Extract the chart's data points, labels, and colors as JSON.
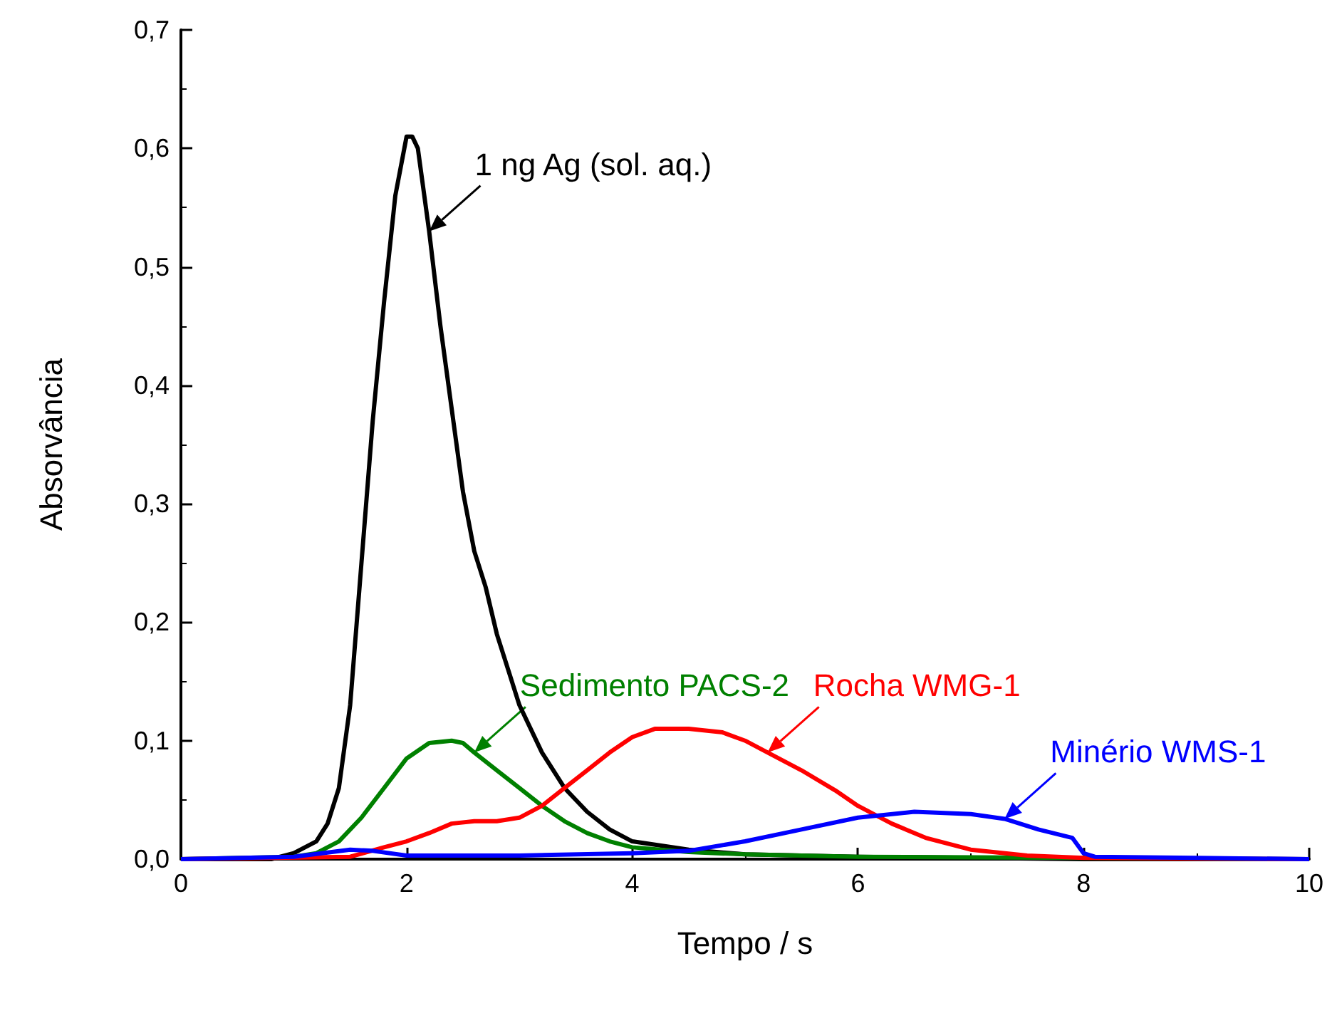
{
  "chart_data": {
    "type": "line",
    "xlabel": "Tempo / s",
    "ylabel": "Absorvância",
    "xlim": [
      0,
      10
    ],
    "xticks": [
      0,
      2,
      4,
      6,
      8,
      10
    ],
    "ylim": [
      0,
      0.7
    ],
    "yticks": [
      {
        "value": 0,
        "label": "0,0"
      },
      {
        "value": 0.1,
        "label": "0,1"
      },
      {
        "value": 0.2,
        "label": "0,2"
      },
      {
        "value": 0.3,
        "label": "0,3"
      },
      {
        "value": 0.4,
        "label": "0,4"
      },
      {
        "value": 0.5,
        "label": "0,5"
      },
      {
        "value": 0.6,
        "label": "0,6"
      },
      {
        "value": 0.7,
        "label": "0,7"
      }
    ],
    "grid": false,
    "marker": "none",
    "line_style": "solid",
    "series": [
      {
        "name": "1 ng Ag (sol. aq.)",
        "color": "#000000",
        "x": [
          0,
          0.8,
          1.0,
          1.2,
          1.3,
          1.4,
          1.5,
          1.6,
          1.7,
          1.8,
          1.9,
          2.0,
          2.05,
          2.1,
          2.2,
          2.3,
          2.4,
          2.5,
          2.6,
          2.7,
          2.8,
          2.9,
          3.0,
          3.2,
          3.4,
          3.6,
          3.8,
          4.0,
          4.5,
          5,
          6,
          7,
          8,
          10
        ],
        "values": [
          0,
          0,
          0.005,
          0.015,
          0.03,
          0.06,
          0.13,
          0.25,
          0.37,
          0.47,
          0.56,
          0.61,
          0.61,
          0.6,
          0.53,
          0.45,
          0.38,
          0.31,
          0.26,
          0.23,
          0.19,
          0.16,
          0.13,
          0.09,
          0.06,
          0.04,
          0.025,
          0.015,
          0.008,
          0.004,
          0.002,
          0.001,
          0,
          0
        ]
      },
      {
        "name": "Sedimento PACS-2",
        "color": "#008000",
        "x": [
          0,
          1.0,
          1.2,
          1.4,
          1.6,
          1.8,
          2.0,
          2.2,
          2.4,
          2.5,
          2.6,
          2.8,
          3.0,
          3.2,
          3.4,
          3.6,
          3.8,
          4.0,
          4.5,
          5,
          6,
          8,
          10
        ],
        "values": [
          0,
          0.002,
          0.005,
          0.015,
          0.035,
          0.06,
          0.085,
          0.098,
          0.1,
          0.098,
          0.09,
          0.075,
          0.06,
          0.045,
          0.032,
          0.022,
          0.015,
          0.01,
          0.006,
          0.004,
          0.002,
          0.001,
          0
        ]
      },
      {
        "name": "Rocha WMG-1",
        "color": "#ff0000",
        "x": [
          0,
          1.5,
          1.8,
          2.0,
          2.2,
          2.4,
          2.6,
          2.8,
          3.0,
          3.2,
          3.4,
          3.6,
          3.8,
          4.0,
          4.2,
          4.5,
          4.8,
          5.0,
          5.2,
          5.5,
          5.8,
          6.0,
          6.3,
          6.6,
          7.0,
          7.5,
          8,
          10
        ],
        "values": [
          0,
          0.002,
          0.01,
          0.015,
          0.022,
          0.03,
          0.032,
          0.032,
          0.035,
          0.045,
          0.06,
          0.075,
          0.09,
          0.103,
          0.11,
          0.11,
          0.107,
          0.1,
          0.09,
          0.075,
          0.058,
          0.045,
          0.03,
          0.018,
          0.008,
          0.003,
          0.001,
          0
        ]
      },
      {
        "name": "Minério WMS-1",
        "color": "#0000ff",
        "x": [
          0,
          1.0,
          1.5,
          1.7,
          2.0,
          3.0,
          4.0,
          4.5,
          5.0,
          5.5,
          6.0,
          6.5,
          7.0,
          7.3,
          7.6,
          7.9,
          8.0,
          8.1,
          9,
          10
        ],
        "values": [
          0,
          0.002,
          0.008,
          0.007,
          0.003,
          0.003,
          0.005,
          0.007,
          0.015,
          0.025,
          0.035,
          0.04,
          0.038,
          0.034,
          0.025,
          0.018,
          0.005,
          0.002,
          0.001,
          0
        ]
      }
    ]
  }
}
